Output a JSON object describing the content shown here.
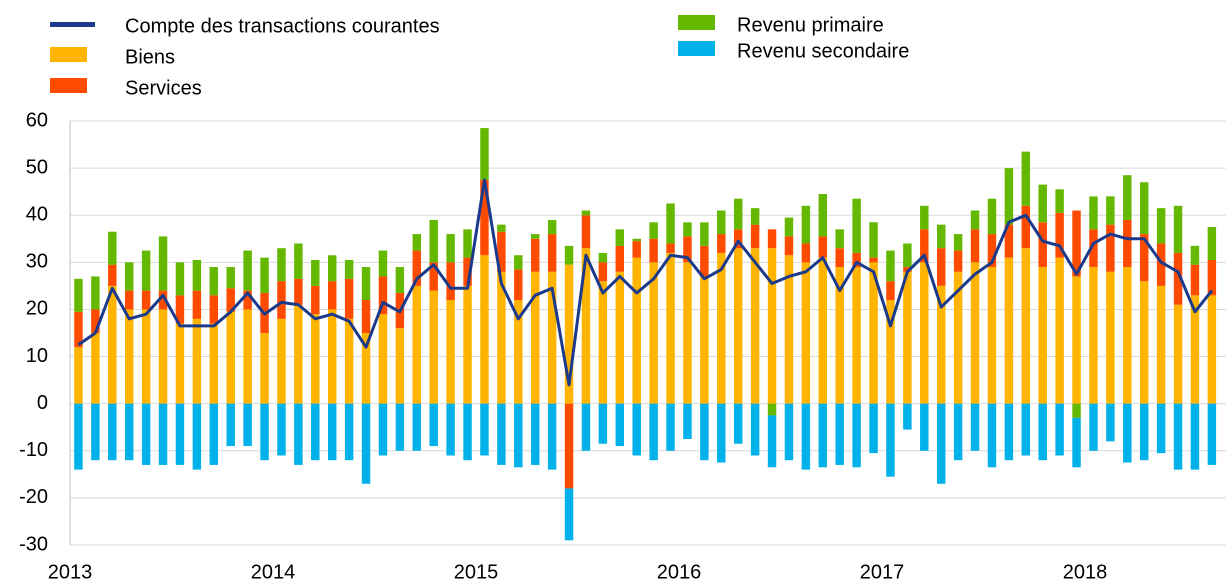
{
  "chart_data": {
    "type": "bar",
    "stacked": true,
    "categories": [
      "2013",
      null,
      null,
      null,
      null,
      null,
      null,
      null,
      null,
      null,
      null,
      null,
      "2014",
      null,
      null,
      null,
      null,
      null,
      null,
      null,
      null,
      null,
      null,
      null,
      "2015",
      null,
      null,
      null,
      null,
      null,
      null,
      null,
      null,
      null,
      null,
      null,
      "2016",
      null,
      null,
      null,
      null,
      null,
      null,
      null,
      null,
      null,
      null,
      null,
      "2017",
      null,
      null,
      null,
      null,
      null,
      null,
      null,
      null,
      null,
      null,
      null,
      "2018",
      null,
      null,
      null,
      null,
      null,
      null,
      null
    ],
    "series": [
      {
        "name": "Compte des transactions courantes",
        "type": "line",
        "color": "#1c3a8c",
        "values": [
          12.5,
          15,
          24.5,
          18,
          19,
          23,
          16.5,
          16.5,
          16.5,
          19.5,
          23.5,
          19,
          21.5,
          21,
          18,
          19,
          17.5,
          12,
          21.5,
          19.5,
          26.5,
          29.5,
          24.5,
          24.5,
          47.5,
          25.5,
          18,
          23,
          24.5,
          4,
          31.5,
          23.5,
          27,
          23.5,
          26.5,
          31.5,
          31,
          26.5,
          28.5,
          34.5,
          30,
          25.5,
          27,
          28,
          31,
          24,
          30,
          28,
          16.5,
          28,
          31.5,
          20.5,
          24,
          27.5,
          30,
          38.5,
          40,
          34.5,
          33.5,
          27.5,
          34,
          36,
          35,
          35,
          30,
          28,
          19.5,
          24
        ]
      },
      {
        "name": "Biens",
        "type": "bar",
        "color": "#ffb400",
        "values": [
          12,
          15,
          25,
          20,
          20,
          20,
          17,
          18,
          17,
          19.5,
          20,
          15,
          18,
          21,
          19,
          20,
          18,
          15,
          19,
          16,
          25,
          24,
          22,
          25,
          31.5,
          28,
          22,
          28,
          28,
          29.5,
          33,
          26,
          28,
          31,
          30,
          32,
          30,
          27,
          32,
          33,
          33,
          33,
          31.5,
          30,
          31,
          29,
          29,
          30,
          22,
          28,
          30,
          25,
          28,
          30,
          29,
          31,
          33,
          29,
          31,
          27,
          29,
          28,
          29,
          26,
          25,
          21,
          23,
          23
        ]
      },
      {
        "name": "Services",
        "type": "bar",
        "color": "#ff4b00",
        "values": [
          7.5,
          5,
          4.5,
          4,
          4,
          4,
          6,
          6,
          6,
          5,
          4,
          8.5,
          8,
          5.5,
          6,
          6,
          8.5,
          7,
          8,
          7.5,
          7.5,
          6,
          8,
          6,
          16,
          8.5,
          6.5,
          7,
          8,
          -18,
          7,
          4,
          5.5,
          3.5,
          5,
          2,
          5.5,
          6.5,
          4,
          4,
          5,
          4,
          4,
          4,
          4.5,
          4,
          3,
          1,
          4,
          1,
          7,
          8,
          4.5,
          7,
          7,
          7,
          9,
          9.5,
          9.5,
          14,
          8,
          10,
          10,
          10,
          9,
          11,
          6.5,
          7.5
        ]
      },
      {
        "name": "Revenu primaire",
        "type": "bar",
        "color": "#65b800",
        "values": [
          7,
          7,
          7,
          6,
          8.5,
          11.5,
          7,
          6.5,
          6,
          4.5,
          8.5,
          7.5,
          7,
          7.5,
          5.5,
          5.5,
          4,
          7,
          5.5,
          5.5,
          3.5,
          9,
          6,
          6,
          11,
          1.5,
          3,
          1,
          3,
          4,
          1,
          2,
          3.5,
          0.5,
          3.5,
          8.5,
          3,
          5,
          5,
          6.5,
          3.5,
          -2.5,
          4,
          8,
          9,
          4,
          11.5,
          7.5,
          6.5,
          5,
          5,
          5,
          3.5,
          4,
          7.5,
          12,
          11.5,
          8,
          5,
          -3,
          7,
          6,
          9.5,
          11,
          7.5,
          10,
          4,
          7
        ]
      },
      {
        "name": "Revenu secondaire",
        "type": "bar",
        "color": "#00b1ea",
        "values": [
          -14,
          -12,
          -12,
          -12,
          -13,
          -13,
          -13,
          -14,
          -13,
          -9,
          -9,
          -12,
          -11,
          -13,
          -12,
          -12,
          -12,
          -17,
          -11,
          -10,
          -10,
          -9,
          -11,
          -12,
          -11,
          -13,
          -13.5,
          -13,
          -14,
          -11,
          -10,
          -8.5,
          -9,
          -11,
          -12,
          -10,
          -7.5,
          -12,
          -12.5,
          -8.5,
          -11,
          -11,
          -12,
          -14,
          -13.5,
          -13,
          -13.5,
          -10.5,
          -15.5,
          -5.5,
          -10,
          -17,
          -12,
          -10,
          -13.5,
          -12,
          -11,
          -12,
          -11,
          -10.5,
          -10,
          -8,
          -12.5,
          -12,
          -10.5,
          -14,
          -14,
          -13
        ]
      }
    ],
    "ylim": [
      -30,
      60
    ],
    "yticks": [
      -30,
      -20,
      -10,
      0,
      10,
      20,
      30,
      40,
      50,
      60
    ],
    "grid": true
  }
}
